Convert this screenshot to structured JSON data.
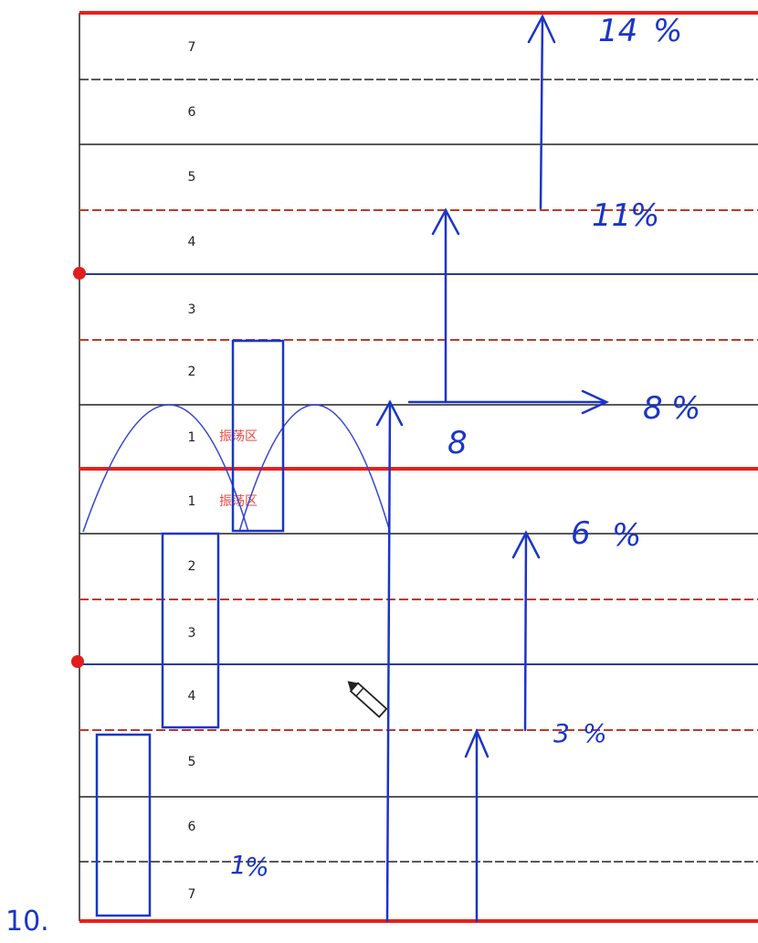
{
  "upper_levels": [
    "7",
    "6",
    "5",
    "4",
    "3",
    "2",
    "1"
  ],
  "lower_levels": [
    "1",
    "2",
    "3",
    "4",
    "5",
    "6",
    "7"
  ],
  "oscillation_zone_label": "振荡区",
  "annotations": {
    "a_14": "14",
    "a_11": "11",
    "a_8_label": "8",
    "a_8_pct": "8",
    "a_6": "6",
    "a_3": "3",
    "a_1": "1",
    "pct_glyph": "%"
  },
  "corner_label": "10.",
  "colors": {
    "ink_blue": "#1a35c8",
    "main_red": "#e8201a",
    "dashed_red": "#c0392b",
    "zone_text": "#e84a3a",
    "grid": "#222222",
    "marker": "#e01e1e"
  }
}
